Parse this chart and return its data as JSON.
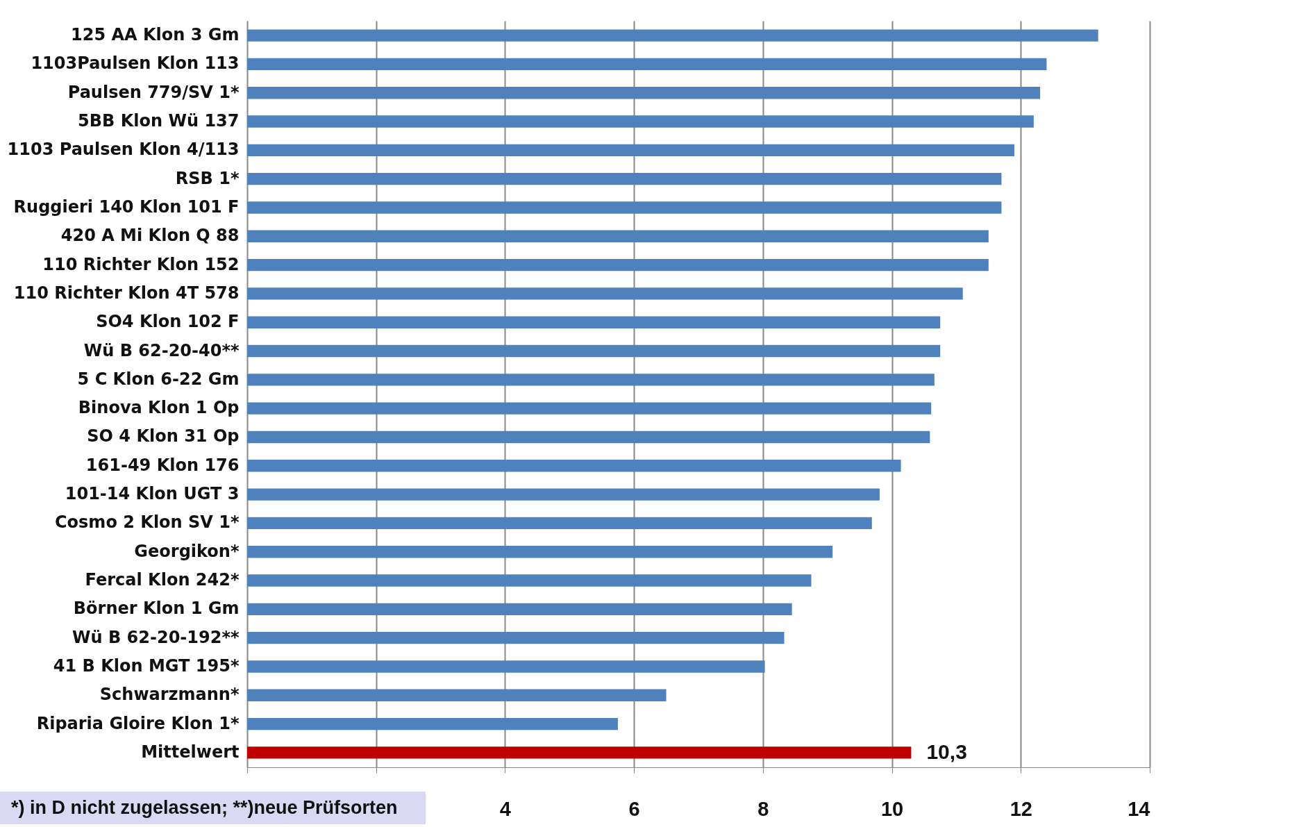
{
  "chart_data": {
    "type": "bar",
    "orientation": "horizontal",
    "categories": [
      "125 AA Klon 3 Gm",
      "1103Paulsen Klon 113",
      "Paulsen 779/SV 1*",
      "5BB Klon Wü 137",
      "1103 Paulsen Klon 4/113",
      "RSB 1*",
      "Ruggieri 140 Klon 101 F",
      "420 A Mi Klon Q 88",
      "110 Richter Klon 152",
      "110 Richter Klon 4T 578",
      "SO4 Klon 102 F",
      "Wü B 62-20-40**",
      "5 C Klon 6-22 Gm",
      "Binova Klon 1 Op",
      "SO 4 Klon 31 Op",
      "161-49 Klon 176",
      "101-14 Klon UGT 3",
      "Cosmo 2 Klon SV 1*",
      "Georgikon*",
      "Fercal Klon 242*",
      "Börner Klon 1 Gm",
      "Wü B 62-20-192**",
      "41 B Klon MGT 195*",
      "Schwarzmann*",
      "Riparia Gloire Klon 1*",
      "Mittelwert"
    ],
    "values": [
      13.2,
      12.4,
      12.3,
      12.2,
      11.9,
      11.7,
      11.7,
      11.5,
      11.5,
      11.1,
      10.75,
      10.75,
      10.66,
      10.61,
      10.59,
      10.14,
      9.81,
      9.69,
      9.08,
      8.75,
      8.45,
      8.33,
      8.03,
      6.5,
      5.75,
      10.3
    ],
    "colors": [
      "#4f81bd",
      "#4f81bd",
      "#4f81bd",
      "#4f81bd",
      "#4f81bd",
      "#4f81bd",
      "#4f81bd",
      "#4f81bd",
      "#4f81bd",
      "#4f81bd",
      "#4f81bd",
      "#4f81bd",
      "#4f81bd",
      "#4f81bd",
      "#4f81bd",
      "#4f81bd",
      "#4f81bd",
      "#4f81bd",
      "#4f81bd",
      "#4f81bd",
      "#4f81bd",
      "#4f81bd",
      "#4f81bd",
      "#4f81bd",
      "#4f81bd",
      "#c00000"
    ],
    "value_labels": [
      null,
      null,
      null,
      null,
      null,
      null,
      null,
      null,
      null,
      null,
      null,
      null,
      null,
      null,
      null,
      null,
      null,
      null,
      null,
      null,
      null,
      null,
      null,
      null,
      null,
      "10,3"
    ],
    "xlim": [
      0,
      14
    ],
    "xticks": [
      {
        "value": 0,
        "label": null
      },
      {
        "value": 2,
        "label": null
      },
      4,
      6,
      8,
      10,
      12,
      14
    ],
    "grid": "x",
    "annotations": [
      "*) in D nicht zugelassen; **)neue Prüfsorten"
    ]
  }
}
